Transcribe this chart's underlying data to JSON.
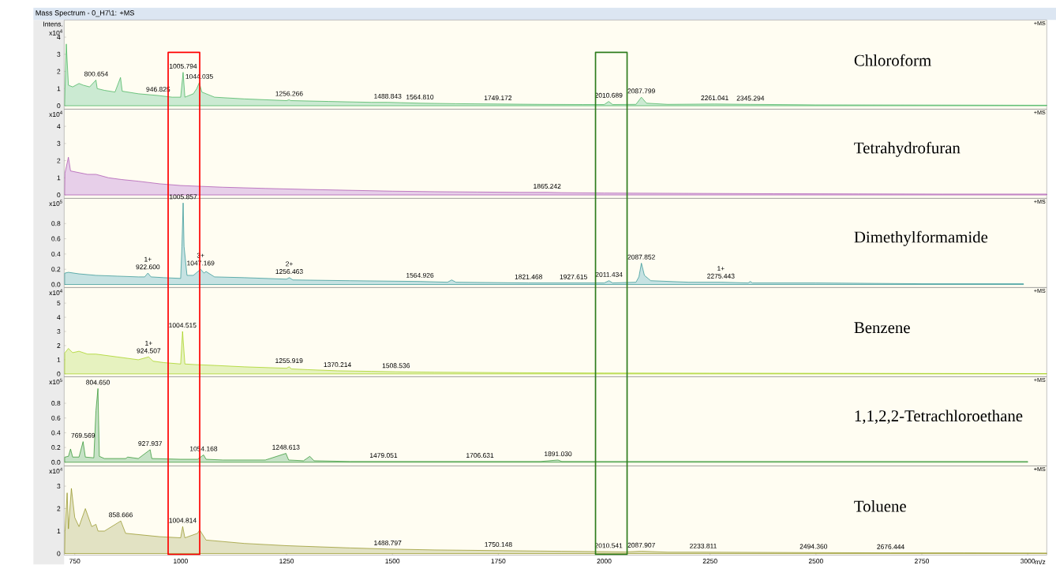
{
  "chart_data": [
    {
      "type": "area",
      "title": "Mass Spectrum - 0_H7\\1: +MS",
      "ylabel": "x10$^{4}$",
      "xlim": [
        725,
        3045
      ],
      "ylim": [
        -0.2,
        5.0
      ],
      "yticks": [
        0,
        1,
        2,
        3,
        4
      ],
      "tick_labels": "y",
      "series": [
        {
          "name": "Chloroform",
          "color": "#2eaa4a",
          "x": [
            727,
            730,
            735,
            745,
            760,
            770,
            785,
            800,
            803,
            820,
            845,
            858,
            862,
            900,
            946,
            980,
            1000,
            1005.8,
            1010,
            1030,
            1038,
            1044,
            1050,
            1080,
            1150,
            1250,
            1256,
            1260,
            1350,
            1450,
            1489,
            1565,
            1650,
            1749,
            1850,
            1950,
            2000,
            2010.7,
            2020,
            2075,
            2087.8,
            2100,
            2150,
            2261,
            2345,
            2500,
            2750,
            3000,
            3045
          ],
          "values": [
            1.0,
            3.6,
            1.2,
            1.1,
            1.3,
            1.2,
            1.1,
            1.5,
            1.0,
            0.9,
            0.8,
            1.65,
            0.85,
            0.7,
            0.6,
            0.5,
            0.5,
            1.95,
            0.5,
            0.7,
            1.0,
            1.35,
            0.8,
            0.5,
            0.4,
            0.3,
            0.35,
            0.3,
            0.25,
            0.2,
            0.2,
            0.15,
            0.12,
            0.1,
            0.08,
            0.07,
            0.07,
            0.25,
            0.07,
            0.08,
            0.5,
            0.15,
            0.08,
            0.1,
            0.08,
            0.05,
            0.04,
            0.03,
            0.03
          ]
        }
      ],
      "annotations": [
        "Intens.",
        "+MS",
        {
          "text": "800.654",
          "x": 800.654,
          "y": 1.5
        },
        {
          "text": "946.825",
          "x": 946.825,
          "y": 0.6
        },
        {
          "text": "1005.794",
          "x": 1005.794,
          "y": 1.95
        },
        {
          "text": "1044.035",
          "x": 1044.035,
          "y": 1.35
        },
        {
          "text": "1256.266",
          "x": 1256.266,
          "y": 0.35
        },
        {
          "text": "1488.843",
          "x": 1488.843,
          "y": 0.2
        },
        {
          "text": "1564.810",
          "x": 1564.81,
          "y": 0.15
        },
        {
          "text": "1749.172",
          "x": 1749.172,
          "y": 0.1
        },
        {
          "text": "2010.689",
          "x": 2010.689,
          "y": 0.25
        },
        {
          "text": "2087.799",
          "x": 2087.799,
          "y": 0.5
        },
        {
          "text": "2261.041",
          "x": 2261.041,
          "y": 0.1
        },
        {
          "text": "2345.294",
          "x": 2345.294,
          "y": 0.08
        }
      ]
    },
    {
      "type": "area",
      "ylabel": "x10$^{4}$",
      "xlim": [
        725,
        3045
      ],
      "ylim": [
        -0.2,
        5.0
      ],
      "yticks": [
        0,
        1,
        2,
        3,
        4
      ],
      "tick_labels": "y",
      "series": [
        {
          "name": "Tetrahydrofuran",
          "color": "#a040a8",
          "x": [
            727,
            735,
            740,
            760,
            780,
            800,
            830,
            860,
            900,
            950,
            1000,
            1050,
            1100,
            1200,
            1300,
            1400,
            1500,
            1600,
            1700,
            1800,
            1865,
            1900,
            2000,
            2200,
            2400,
            2600,
            2800,
            3000,
            3045
          ],
          "values": [
            1.3,
            2.2,
            1.4,
            1.3,
            1.2,
            1.2,
            1.0,
            0.9,
            0.8,
            0.65,
            0.55,
            0.5,
            0.45,
            0.38,
            0.32,
            0.27,
            0.22,
            0.19,
            0.17,
            0.15,
            0.15,
            0.13,
            0.11,
            0.09,
            0.07,
            0.06,
            0.05,
            0.05,
            0.05
          ]
        }
      ],
      "annotations": [
        "+MS",
        {
          "text": "1865.242",
          "x": 1865.242,
          "y": 0.15
        }
      ]
    },
    {
      "type": "area",
      "ylabel": "x10$^{5}$",
      "xlim": [
        725,
        3045
      ],
      "ylim": [
        -0.04,
        1.13
      ],
      "yticks": [
        {
          "value": 0,
          "label": "0.0"
        },
        0.2,
        0.4,
        0.6,
        0.8
      ],
      "tick_labels": "y",
      "series": [
        {
          "name": "Dimethylformamide",
          "color": "#1a8a8a",
          "x": [
            727,
            735,
            760,
            800,
            850,
            900,
            915,
            922.6,
            930,
            960,
            1000,
            1003,
            1005.9,
            1008,
            1015,
            1030,
            1047.2,
            1055,
            1060,
            1080,
            1150,
            1250,
            1256.5,
            1265,
            1400,
            1565,
            1630,
            1640,
            1650,
            1821,
            1928,
            2000,
            2011.4,
            2020,
            2075,
            2082,
            2087.9,
            2095,
            2110,
            2200,
            2275.4,
            2340,
            2345,
            2350,
            2500,
            2750,
            2990
          ],
          "values": [
            0.15,
            0.16,
            0.14,
            0.12,
            0.11,
            0.1,
            0.1,
            0.15,
            0.1,
            0.09,
            0.08,
            0.5,
            1.07,
            0.5,
            0.12,
            0.12,
            0.2,
            0.15,
            0.17,
            0.1,
            0.09,
            0.07,
            0.09,
            0.06,
            0.05,
            0.04,
            0.03,
            0.06,
            0.03,
            0.02,
            0.02,
            0.02,
            0.05,
            0.02,
            0.03,
            0.1,
            0.28,
            0.12,
            0.05,
            0.03,
            0.03,
            0.02,
            0.04,
            0.02,
            0.02,
            0.01,
            0.01
          ]
        }
      ],
      "annotations": [
        "+MS",
        {
          "text": "922.600",
          "x": 922.6,
          "y": 0.15
        },
        {
          "text": "1+",
          "x": 922.6,
          "y": 0.15
        },
        {
          "text": "1005.857",
          "x": 1005.857,
          "y": 1.07
        },
        {
          "text": "1047.169",
          "x": 1047.169,
          "y": 0.2
        },
        {
          "text": "3+",
          "x": 1047.169,
          "y": 0.2
        },
        {
          "text": "1256.463",
          "x": 1256.463,
          "y": 0.09
        },
        {
          "text": "2+",
          "x": 1256.463,
          "y": 0.09
        },
        {
          "text": "1564.926",
          "x": 1564.926,
          "y": 0.04
        },
        {
          "text": "1821.468",
          "x": 1821.468,
          "y": 0.02
        },
        {
          "text": "1927.615",
          "x": 1927.615,
          "y": 0.02
        },
        {
          "text": "2011.434",
          "x": 2011.434,
          "y": 0.05
        },
        {
          "text": "2087.852",
          "x": 2087.852,
          "y": 0.28
        },
        {
          "text": "2275.443",
          "x": 2275.443,
          "y": 0.03
        },
        {
          "text": "1+",
          "x": 2275.443,
          "y": 0.03
        }
      ]
    },
    {
      "type": "area",
      "ylabel": "x10$^{4}$",
      "xlim": [
        725,
        3045
      ],
      "ylim": [
        -0.2,
        6.1
      ],
      "yticks": [
        0,
        1,
        2,
        3,
        4,
        5
      ],
      "tick_labels": "y",
      "series": [
        {
          "name": "Benzene",
          "color": "#99cc00",
          "x": [
            727,
            735,
            745,
            760,
            780,
            800,
            850,
            900,
            924.5,
            935,
            960,
            1000,
            1004.5,
            1010,
            1040,
            1080,
            1150,
            1250,
            1255.9,
            1262,
            1300,
            1370.2,
            1450,
            1508.5,
            1600,
            1800,
            2000,
            2250,
            2500,
            2750,
            3000,
            3045
          ],
          "values": [
            1.5,
            1.8,
            1.5,
            1.6,
            1.4,
            1.4,
            1.2,
            1.0,
            1.2,
            0.9,
            0.8,
            0.7,
            3.0,
            0.7,
            0.65,
            0.6,
            0.5,
            0.4,
            0.5,
            0.35,
            0.3,
            0.22,
            0.18,
            0.15,
            0.12,
            0.08,
            0.06,
            0.05,
            0.04,
            0.03,
            0.02,
            0.02
          ]
        }
      ],
      "annotations": [
        "+MS",
        {
          "text": "924.507",
          "x": 924.507,
          "y": 1.2
        },
        {
          "text": "1+",
          "x": 924.507,
          "y": 1.2
        },
        {
          "text": "1004.515",
          "x": 1004.515,
          "y": 3.0
        },
        {
          "text": "1255.919",
          "x": 1255.919,
          "y": 0.5
        },
        {
          "text": "1370.214",
          "x": 1370.214,
          "y": 0.22
        },
        {
          "text": "1508.536",
          "x": 1508.536,
          "y": 0.15
        }
      ]
    },
    {
      "type": "area",
      "ylabel": "x10$^{5}$",
      "xlim": [
        725,
        3045
      ],
      "ylim": [
        -0.05,
        1.16
      ],
      "yticks": [
        {
          "value": 0,
          "label": "0.0"
        },
        0.2,
        0.4,
        0.6,
        0.8
      ],
      "tick_labels": "y",
      "series": [
        {
          "name": "1,1,2,2-Tetrachloroethane",
          "color": "#1a8a1a",
          "x": [
            727,
            735,
            740,
            745,
            760,
            769.6,
            775,
            795,
            800,
            804.7,
            808,
            820,
            870,
            875,
            900,
            927.9,
            932,
            1000,
            1040,
            1054.2,
            1060,
            1100,
            1200,
            1248.6,
            1255,
            1290,
            1305,
            1315,
            1400,
            1479,
            1600,
            1706.6,
            1850,
            1891,
            1900,
            2100,
            2500,
            3000
          ],
          "values": [
            0.07,
            0.08,
            0.18,
            0.07,
            0.07,
            0.28,
            0.07,
            0.06,
            0.7,
            1.0,
            0.08,
            0.05,
            0.05,
            0.07,
            0.05,
            0.17,
            0.05,
            0.04,
            0.04,
            0.1,
            0.04,
            0.03,
            0.03,
            0.12,
            0.03,
            0.02,
            0.08,
            0.02,
            0.01,
            0.01,
            0.01,
            0.01,
            0.01,
            0.03,
            0.01,
            0.01,
            0.01,
            0.01
          ]
        }
      ],
      "annotations": [
        "+MS",
        {
          "text": "769.569",
          "x": 769.569,
          "y": 0.28
        },
        {
          "text": "804.650",
          "x": 804.65,
          "y": 1.0
        },
        {
          "text": "927.937",
          "x": 927.937,
          "y": 0.17
        },
        {
          "text": "1054.168",
          "x": 1054.168,
          "y": 0.1
        },
        {
          "text": "1248.613",
          "x": 1248.613,
          "y": 0.12
        },
        {
          "text": "1479.051",
          "x": 1479.051,
          "y": 0.01
        },
        {
          "text": "1706.631",
          "x": 1706.631,
          "y": 0.01
        },
        {
          "text": "1891.030",
          "x": 1891.03,
          "y": 0.03
        }
      ]
    },
    {
      "type": "area",
      "ylabel": "x10$^{4}$",
      "xlabel": "m/z",
      "xlim": [
        725,
        3045
      ],
      "ylim": [
        -0.07,
        3.9
      ],
      "yticks": [
        0,
        1,
        2,
        3
      ],
      "xticks": [
        750,
        1000,
        1250,
        1500,
        1750,
        2000,
        2250,
        2500,
        2750,
        3000
      ],
      "series": [
        {
          "name": "Toluene",
          "color": "#8a8a10",
          "x": [
            727,
            732,
            735,
            742,
            750,
            760,
            775,
            790,
            800,
            805,
            820,
            858.7,
            870,
            950,
            1000,
            1004.8,
            1010,
            1040,
            1045,
            1060,
            1150,
            1250,
            1400,
            1488.8,
            1600,
            1750.1,
            1900,
            2010.5,
            2050,
            2087.9,
            2150,
            2233.8,
            2494.4,
            2676.4,
            2850,
            3045
          ],
          "values": [
            1.0,
            2.7,
            1.1,
            2.9,
            1.6,
            1.2,
            2.0,
            1.2,
            1.3,
            1.0,
            1.0,
            1.45,
            0.9,
            0.75,
            0.7,
            1.2,
            0.7,
            0.9,
            1.05,
            0.6,
            0.45,
            0.35,
            0.25,
            0.2,
            0.16,
            0.13,
            0.1,
            0.08,
            0.07,
            0.1,
            0.06,
            0.06,
            0.04,
            0.03,
            0.03,
            0.02
          ]
        }
      ],
      "annotations": [
        "+MS",
        {
          "text": "858.666",
          "x": 858.666,
          "y": 1.45
        },
        {
          "text": "1004.814",
          "x": 1004.814,
          "y": 1.2
        },
        {
          "text": "1488.797",
          "x": 1488.797,
          "y": 0.2
        },
        {
          "text": "1750.148",
          "x": 1750.148,
          "y": 0.13
        },
        {
          "text": "2010.541",
          "x": 2010.541,
          "y": 0.08
        },
        {
          "text": "2087.907",
          "x": 2087.907,
          "y": 0.1
        },
        {
          "text": "2233.811",
          "x": 2233.811,
          "y": 0.06
        },
        {
          "text": "2494.360",
          "x": 2494.36,
          "y": 0.04
        },
        {
          "text": "2676.444",
          "x": 2676.444,
          "y": 0.03
        }
      ]
    }
  ]
}
